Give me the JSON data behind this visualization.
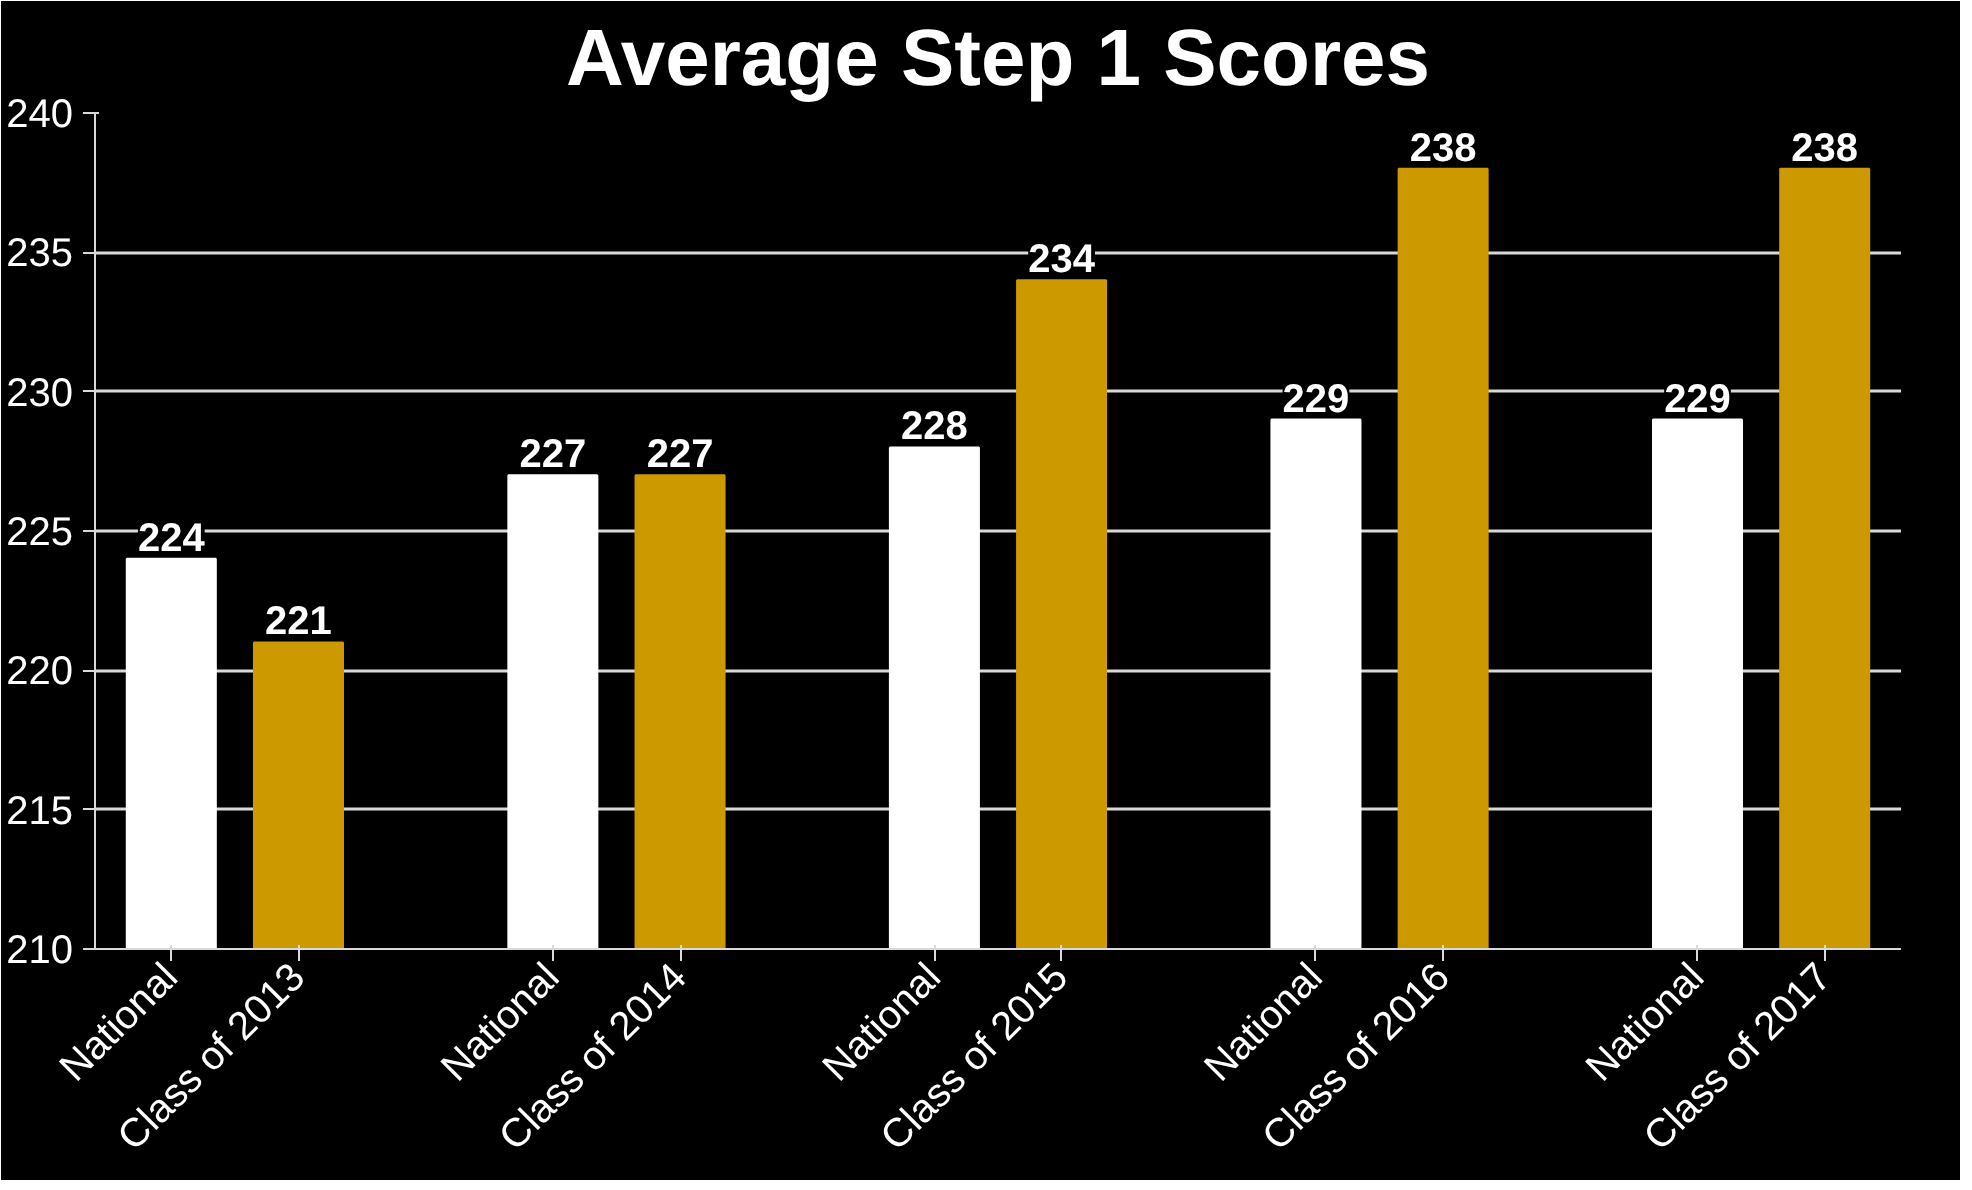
{
  "chart_data": {
    "type": "bar",
    "title": "Average Step 1 Scores",
    "categories": [
      "National",
      "Class of 2013",
      null,
      "National",
      "Class of 2014",
      null,
      "National",
      "Class of 2015",
      null,
      "National",
      "Class of 2016",
      null,
      "National",
      "Class of 2017"
    ],
    "values": [
      224,
      221,
      null,
      227,
      227,
      null,
      228,
      234,
      null,
      229,
      238,
      null,
      229,
      238
    ],
    "colors": [
      "#ffffff",
      "#cc9900",
      null,
      "#ffffff",
      "#cc9900",
      null,
      "#ffffff",
      "#cc9900",
      null,
      "#ffffff",
      "#cc9900",
      null,
      "#ffffff",
      "#cc9900"
    ],
    "ylim": [
      210,
      240
    ],
    "yticks": [
      210,
      215,
      220,
      225,
      230,
      235,
      240
    ],
    "grid": "y",
    "data_labels": true
  }
}
